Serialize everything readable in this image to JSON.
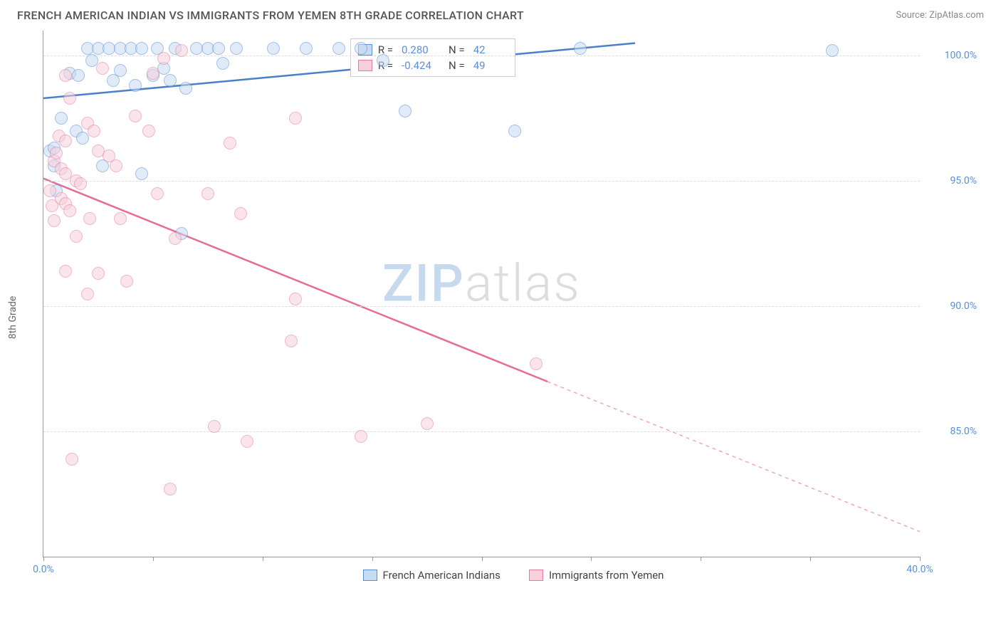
{
  "header": {
    "title": "FRENCH AMERICAN INDIAN VS IMMIGRANTS FROM YEMEN 8TH GRADE CORRELATION CHART",
    "source_prefix": "Source: ",
    "source_link": "ZipAtlas.com"
  },
  "chart": {
    "type": "scatter",
    "ylabel": "8th Grade",
    "background_color": "#ffffff",
    "grid_color": "#dddddd",
    "axis_color": "#999999",
    "xlim": [
      0,
      40
    ],
    "ylim": [
      80,
      101
    ],
    "xticks": [
      0,
      5,
      10,
      15,
      20,
      25,
      30,
      35,
      40
    ],
    "xtick_labels": {
      "0": "0.0%",
      "40": "40.0%"
    },
    "yticks": [
      85,
      90,
      95,
      100
    ],
    "ytick_labels": [
      "85.0%",
      "90.0%",
      "95.0%",
      "100.0%"
    ],
    "marker_radius": 9,
    "marker_opacity": 0.55,
    "marker_border_width": 1.5,
    "watermark": {
      "part1": "ZIP",
      "part2": "atlas"
    },
    "series": [
      {
        "id": "fai",
        "label": "French American Indians",
        "color_fill": "#c7dbf2",
        "color_stroke": "#5b8fd6",
        "line_color": "#4a7fc9",
        "R": "0.280",
        "N": "42",
        "trend": {
          "x1": 0,
          "y1": 98.3,
          "x2": 27,
          "y2": 100.5,
          "dash_x": 27
        },
        "points": [
          [
            0.3,
            96.2
          ],
          [
            0.5,
            95.6
          ],
          [
            0.5,
            96.3
          ],
          [
            0.6,
            94.6
          ],
          [
            0.8,
            97.5
          ],
          [
            1.2,
            99.3
          ],
          [
            1.5,
            97.0
          ],
          [
            1.6,
            99.2
          ],
          [
            1.8,
            96.7
          ],
          [
            2.0,
            100.3
          ],
          [
            2.2,
            99.8
          ],
          [
            2.5,
            100.3
          ],
          [
            2.7,
            95.6
          ],
          [
            3.0,
            100.3
          ],
          [
            3.2,
            99.0
          ],
          [
            3.5,
            100.3
          ],
          [
            3.5,
            99.4
          ],
          [
            4.0,
            100.3
          ],
          [
            4.2,
            98.8
          ],
          [
            4.5,
            100.3
          ],
          [
            4.5,
            95.3
          ],
          [
            5.0,
            99.2
          ],
          [
            5.2,
            100.3
          ],
          [
            5.5,
            99.5
          ],
          [
            5.8,
            99.0
          ],
          [
            6.0,
            100.3
          ],
          [
            6.3,
            92.9
          ],
          [
            6.5,
            98.7
          ],
          [
            7.0,
            100.3
          ],
          [
            7.5,
            100.3
          ],
          [
            8.0,
            100.3
          ],
          [
            8.2,
            99.7
          ],
          [
            8.8,
            100.3
          ],
          [
            10.5,
            100.3
          ],
          [
            12.0,
            100.3
          ],
          [
            13.5,
            100.3
          ],
          [
            14.5,
            100.3
          ],
          [
            15.5,
            99.8
          ],
          [
            16.5,
            97.8
          ],
          [
            21.5,
            97.0
          ],
          [
            24.5,
            100.3
          ],
          [
            36.0,
            100.2
          ]
        ]
      },
      {
        "id": "yemen",
        "label": "Immigrants from Yemen",
        "color_fill": "#f7d0dc",
        "color_stroke": "#e47ba0",
        "line_color": "#e86b96",
        "R": "-0.424",
        "N": "49",
        "trend": {
          "x1": 0,
          "y1": 95.1,
          "x2": 40,
          "y2": 81.0,
          "dash_x": 23
        },
        "points": [
          [
            0.3,
            94.6
          ],
          [
            0.4,
            94.0
          ],
          [
            0.5,
            95.8
          ],
          [
            0.5,
            93.4
          ],
          [
            0.6,
            96.1
          ],
          [
            0.7,
            96.8
          ],
          [
            0.8,
            95.5
          ],
          [
            0.8,
            94.3
          ],
          [
            1.0,
            99.2
          ],
          [
            1.0,
            96.6
          ],
          [
            1.0,
            95.3
          ],
          [
            1.0,
            94.1
          ],
          [
            1.0,
            91.4
          ],
          [
            1.2,
            98.3
          ],
          [
            1.2,
            93.8
          ],
          [
            1.3,
            83.9
          ],
          [
            1.5,
            95.0
          ],
          [
            1.5,
            92.8
          ],
          [
            1.7,
            94.9
          ],
          [
            2.0,
            97.3
          ],
          [
            2.0,
            90.5
          ],
          [
            2.1,
            93.5
          ],
          [
            2.3,
            97.0
          ],
          [
            2.5,
            96.2
          ],
          [
            2.5,
            91.3
          ],
          [
            2.7,
            99.5
          ],
          [
            3.0,
            96.0
          ],
          [
            3.3,
            95.6
          ],
          [
            3.5,
            93.5
          ],
          [
            3.8,
            91.0
          ],
          [
            4.2,
            97.6
          ],
          [
            4.8,
            97.0
          ],
          [
            5.0,
            99.3
          ],
          [
            5.2,
            94.5
          ],
          [
            5.5,
            99.9
          ],
          [
            5.8,
            82.7
          ],
          [
            6.0,
            92.7
          ],
          [
            6.3,
            100.2
          ],
          [
            7.5,
            94.5
          ],
          [
            7.8,
            85.2
          ],
          [
            8.5,
            96.5
          ],
          [
            9.0,
            93.7
          ],
          [
            9.3,
            84.6
          ],
          [
            11.3,
            88.6
          ],
          [
            11.5,
            97.5
          ],
          [
            11.5,
            90.3
          ],
          [
            14.5,
            84.8
          ],
          [
            17.5,
            85.3
          ],
          [
            22.5,
            87.7
          ]
        ]
      }
    ],
    "stats_box": {
      "left_pct": 35,
      "top_pct": 1.5
    },
    "legend_labels": {
      "r": "R =",
      "n": "N ="
    }
  },
  "legend": {
    "items": [
      {
        "label": "French American Indians",
        "fill": "#c7dbf2",
        "stroke": "#5b8fd6"
      },
      {
        "label": "Immigrants from Yemen",
        "fill": "#f7d0dc",
        "stroke": "#e47ba0"
      }
    ]
  }
}
